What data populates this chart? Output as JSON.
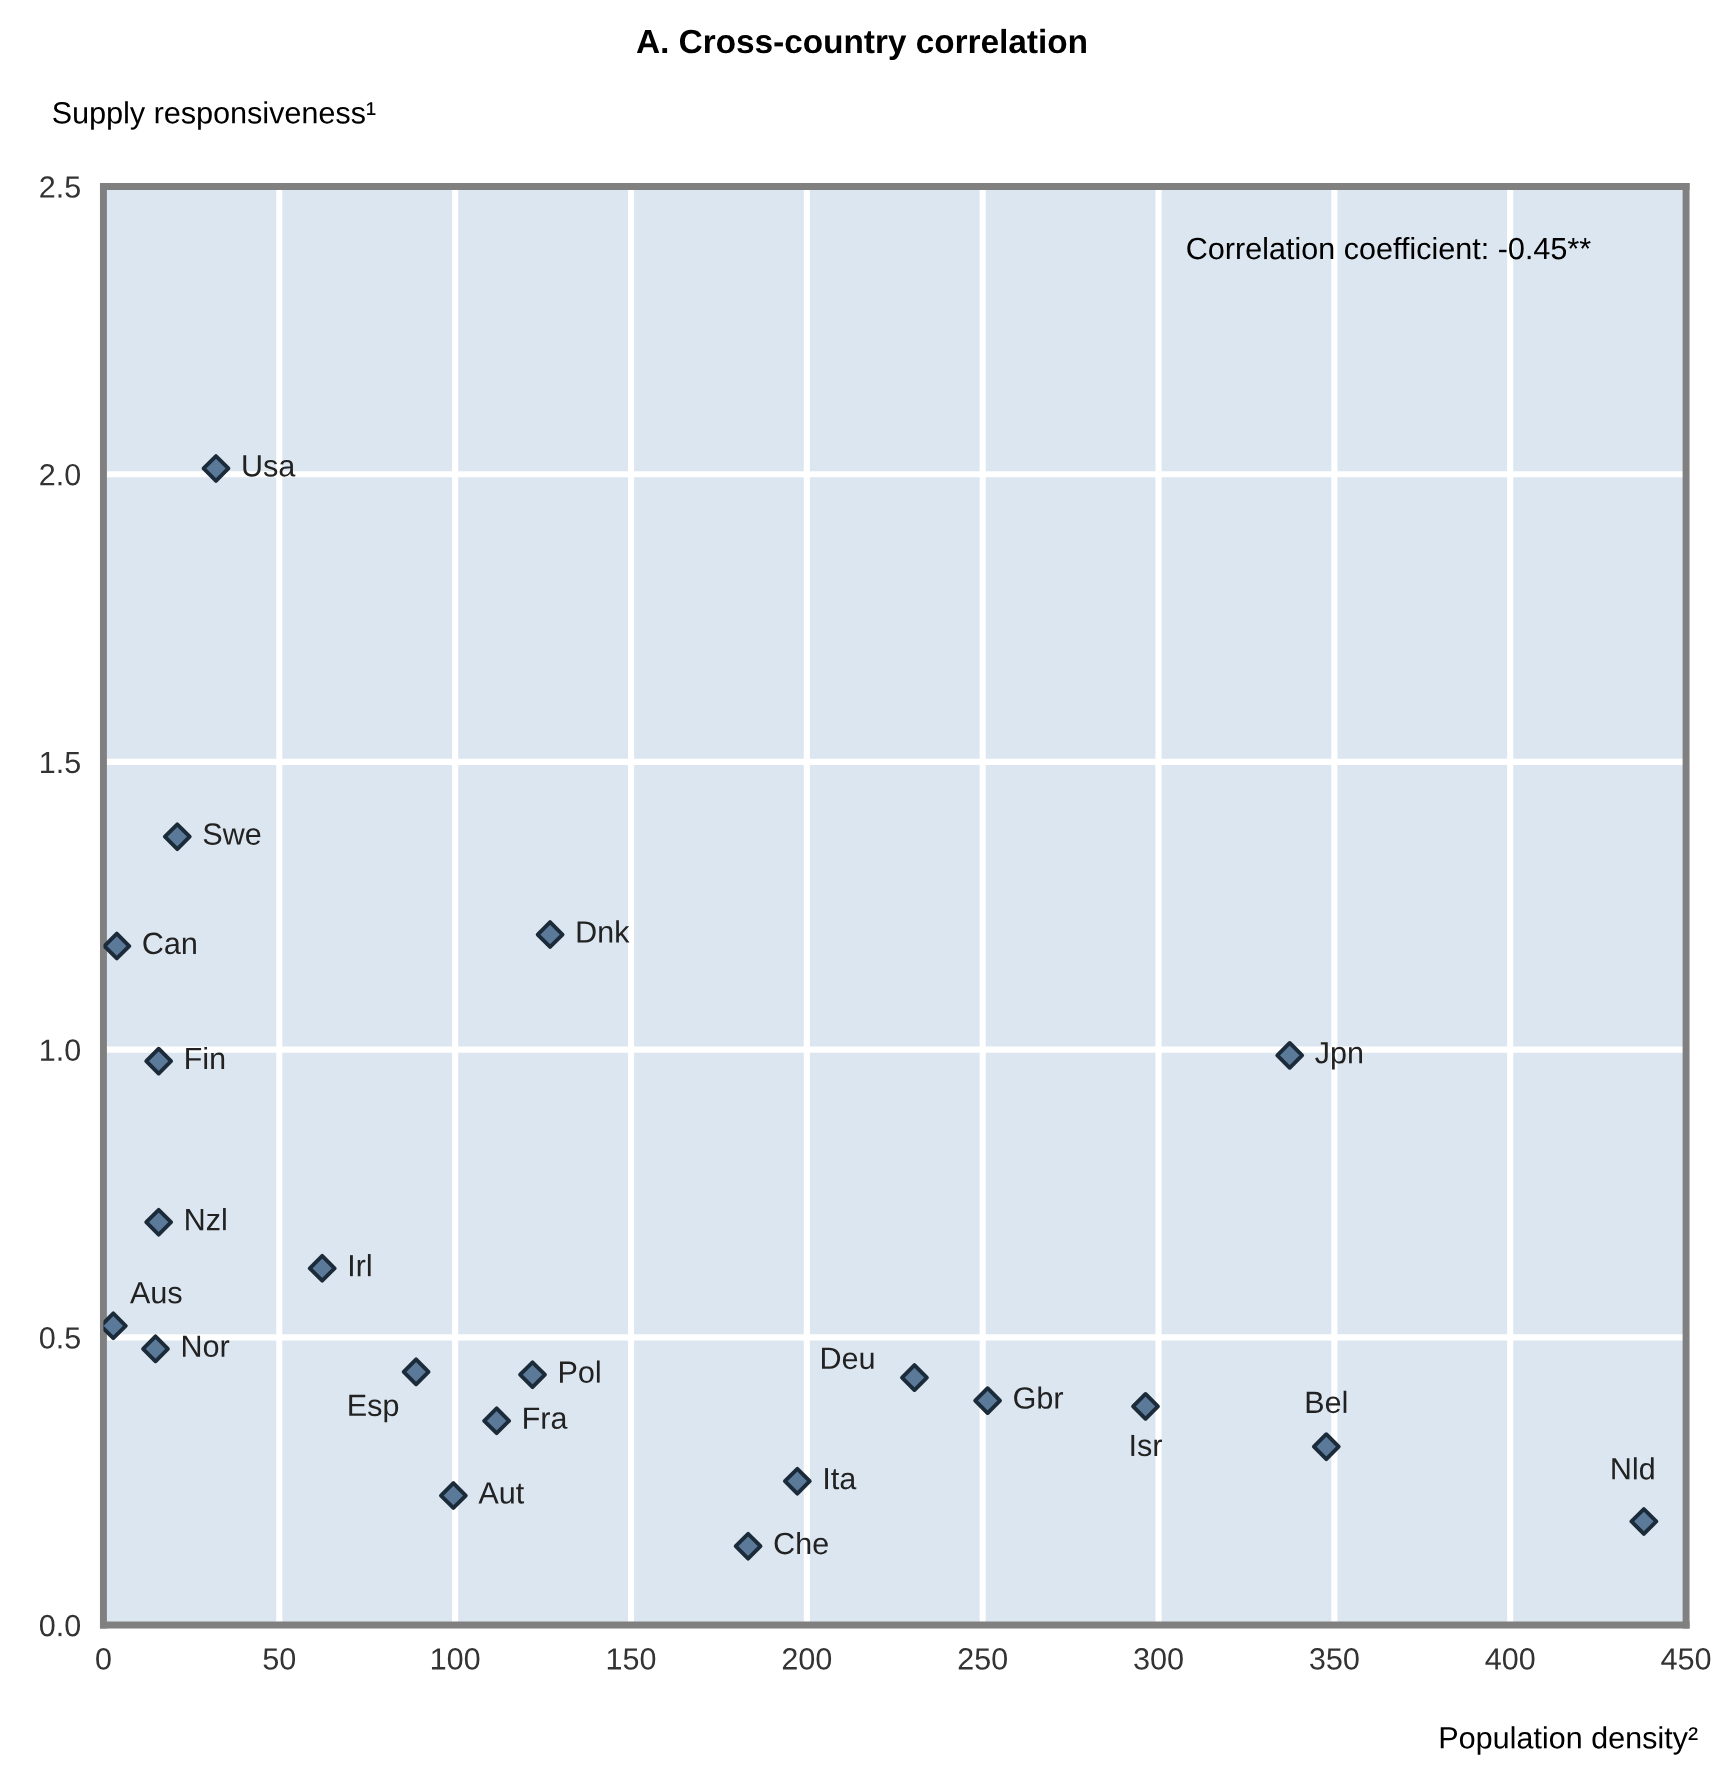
{
  "chart_data": {
    "type": "scatter",
    "title": "A. Cross-country correlation",
    "ylabel": "Supply responsiveness¹",
    "xlabel": "Population density²",
    "x": [
      32,
      21,
      3.8,
      127,
      15.7,
      15.7,
      62.2,
      2.8,
      14.8,
      88.9,
      122,
      111.8,
      99.5,
      197.3,
      183.3,
      230.6,
      251.4,
      296.3,
      337.3,
      347.7,
      438
    ],
    "values": [
      2.01,
      1.37,
      1.18,
      1.2,
      0.98,
      0.7,
      0.62,
      0.52,
      0.48,
      0.44,
      0.435,
      0.355,
      0.225,
      0.25,
      0.137,
      0.43,
      0.39,
      0.38,
      0.99,
      0.31,
      0.18
    ],
    "color": "#5b7a99",
    "marker": "diamond",
    "grid": true,
    "xlim": [
      0,
      450
    ],
    "xticks": [
      0,
      50,
      100,
      150,
      200,
      250,
      300,
      350,
      400,
      450
    ],
    "ylim": [
      0,
      2.5
    ],
    "yticks": [
      {
        "value": 0,
        "label": "0.0"
      },
      {
        "value": 0.5,
        "label": "0.5"
      },
      {
        "value": 1,
        "label": "1.0"
      },
      {
        "value": 1.5,
        "label": "1.5"
      },
      {
        "value": 2,
        "label": "2.0"
      },
      {
        "value": 2.5,
        "label": "2.5"
      }
    ],
    "annotations": [
      {
        "text": "Usa",
        "x": 32,
        "y": 2.01
      },
      {
        "text": "Swe",
        "x": 21,
        "y": 1.37
      },
      {
        "text": "Can",
        "x": 3.8,
        "y": 1.18
      },
      {
        "text": "Dnk",
        "x": 127,
        "y": 1.2
      },
      {
        "text": "Fin",
        "x": 15.7,
        "y": 0.98
      },
      {
        "text": "Nzl",
        "x": 15.7,
        "y": 0.7
      },
      {
        "text": "Irl",
        "x": 62.2,
        "y": 0.62
      },
      {
        "text": "Aus",
        "x": 2.8,
        "y": 0.52
      },
      {
        "text": "Nor",
        "x": 14.8,
        "y": 0.48
      },
      {
        "text": "Esp",
        "x": 88.9,
        "y": 0.44
      },
      {
        "text": "Pol",
        "x": 122,
        "y": 0.435
      },
      {
        "text": "Fra",
        "x": 111.8,
        "y": 0.355
      },
      {
        "text": "Aut",
        "x": 99.5,
        "y": 0.225
      },
      {
        "text": "Ita",
        "x": 197.3,
        "y": 0.25
      },
      {
        "text": "Che",
        "x": 183.3,
        "y": 0.137
      },
      {
        "text": "Deu",
        "x": 230.6,
        "y": 0.43
      },
      {
        "text": "Gbr",
        "x": 251.4,
        "y": 0.39
      },
      {
        "text": "Isr",
        "x": 296.3,
        "y": 0.38
      },
      {
        "text": "Jpn",
        "x": 337.3,
        "y": 0.99
      },
      {
        "text": "Bel",
        "x": 347.7,
        "y": 0.31
      },
      {
        "text": "Nld",
        "x": 438,
        "y": 0.18
      },
      "Correlation coefficient: -0.45**"
    ]
  }
}
